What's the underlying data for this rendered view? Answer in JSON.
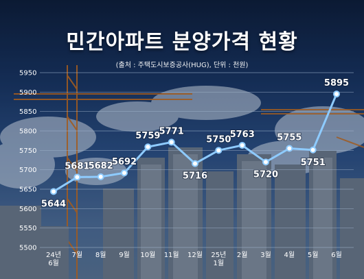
{
  "title": "민간아파트 분양가격 현황",
  "source": "(출처 : 주택도시보증공사(HUG), 단위 : 천원)",
  "colors": {
    "line": "#8ecbff",
    "marker_fill": "#ffffff",
    "grid": "#9fb3cc",
    "text": "#ffffff"
  },
  "chart_data": {
    "type": "line",
    "categories": [
      "24년\n6월",
      "7월",
      "8월",
      "9월",
      "10월",
      "11월",
      "12월",
      "25년\n1월",
      "2월",
      "3월",
      "4월",
      "5월",
      "6월"
    ],
    "series": [
      {
        "values": [
          5644,
          5681,
          5682,
          5692,
          5759,
          5771,
          5716,
          5750,
          5763,
          5720,
          5755,
          5751,
          5895
        ]
      }
    ],
    "data_labels": [
      "5644",
      "5681",
      "5682",
      "5692",
      "5759",
      "5771",
      "5716",
      "5750",
      "5763",
      "5720",
      "5755",
      "5751",
      "5895"
    ],
    "y_ticks": [
      5500,
      5550,
      5600,
      5650,
      5700,
      5750,
      5800,
      5850,
      5900,
      5950
    ],
    "ylim": [
      5500,
      5950
    ],
    "grid": true
  }
}
